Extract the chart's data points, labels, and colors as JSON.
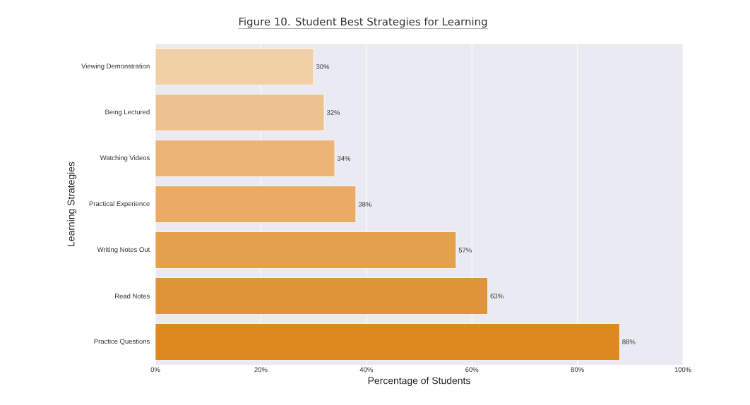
{
  "chart_data": {
    "type": "bar",
    "orientation": "horizontal",
    "title": "Figure 10. Student Best Strategies for Learning",
    "xlabel": "Percentage of Students",
    "ylabel": "Learning Strategies",
    "categories": [
      "Viewing Demonstration",
      "Being Lectured",
      "Watching Videos",
      "Practical Experience",
      "Writing Notes Out",
      "Read Notes",
      "Practice Questions"
    ],
    "values": [
      30,
      32,
      34,
      38,
      57,
      63,
      88
    ],
    "value_labels": [
      "30%",
      "32%",
      "34%",
      "38%",
      "57%",
      "63%",
      "88%"
    ],
    "colors": [
      "#f0d0a4",
      "#eec290",
      "#ecb577",
      "#e9ab65",
      "#e4a04c",
      "#e0943a",
      "#de8820"
    ],
    "xlim": [
      0,
      100
    ],
    "xticks": [
      {
        "value": 0,
        "label": "0%"
      },
      {
        "value": 20,
        "label": "20%"
      },
      {
        "value": 40,
        "label": "40%"
      },
      {
        "value": 60,
        "label": "60%"
      },
      {
        "value": 80,
        "label": "80%"
      },
      {
        "value": 100,
        "label": "100%"
      }
    ],
    "grid": "x"
  }
}
